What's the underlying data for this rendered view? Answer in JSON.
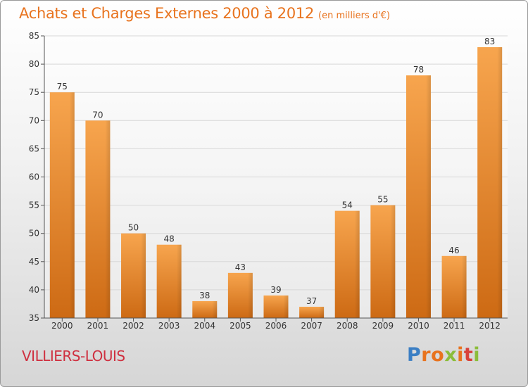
{
  "page": {
    "title": "Achats et Charges Externes 2000 à 2012",
    "subtitle": "(en milliers d'€)",
    "commune": "VILLIERS-LOUIS",
    "brand": {
      "text": "Proxiti",
      "letter_colors": [
        "#3b7fc4",
        "#e8731e",
        "#e8731e",
        "#8bbd3a",
        "#e8731e",
        "#d8413a",
        "#8bbd3a"
      ]
    }
  },
  "colors": {
    "accent": "#e8731e",
    "commune": "#cf2f3f",
    "bar_top": "#f7a54e",
    "bar_bottom": "#cd6a14",
    "gridline": "#d8d8d8",
    "axis_text": "#333333"
  },
  "chart_data": {
    "type": "bar",
    "title": "Achats et Charges Externes 2000 à 2012",
    "subtitle": "(en milliers d'€)",
    "categories": [
      "2000",
      "2001",
      "2002",
      "2003",
      "2004",
      "2005",
      "2006",
      "2007",
      "2008",
      "2009",
      "2010",
      "2011",
      "2012"
    ],
    "values": [
      75,
      70,
      50,
      48,
      38,
      43,
      39,
      37,
      54,
      55,
      78,
      46,
      83
    ],
    "data_labels": [
      "75",
      "70",
      "50",
      "48",
      "38",
      "43",
      "39",
      "37",
      "54",
      "55",
      "78",
      "46",
      "83"
    ],
    "ylim": [
      35,
      85
    ],
    "yticks": [
      35,
      40,
      45,
      50,
      55,
      60,
      65,
      70,
      75,
      80,
      85
    ],
    "ytick_labels": [
      "35",
      "40",
      "45",
      "50",
      "55",
      "60",
      "65",
      "70",
      "75",
      "80",
      "85"
    ],
    "grid": true,
    "xlabel": "",
    "ylabel": ""
  }
}
